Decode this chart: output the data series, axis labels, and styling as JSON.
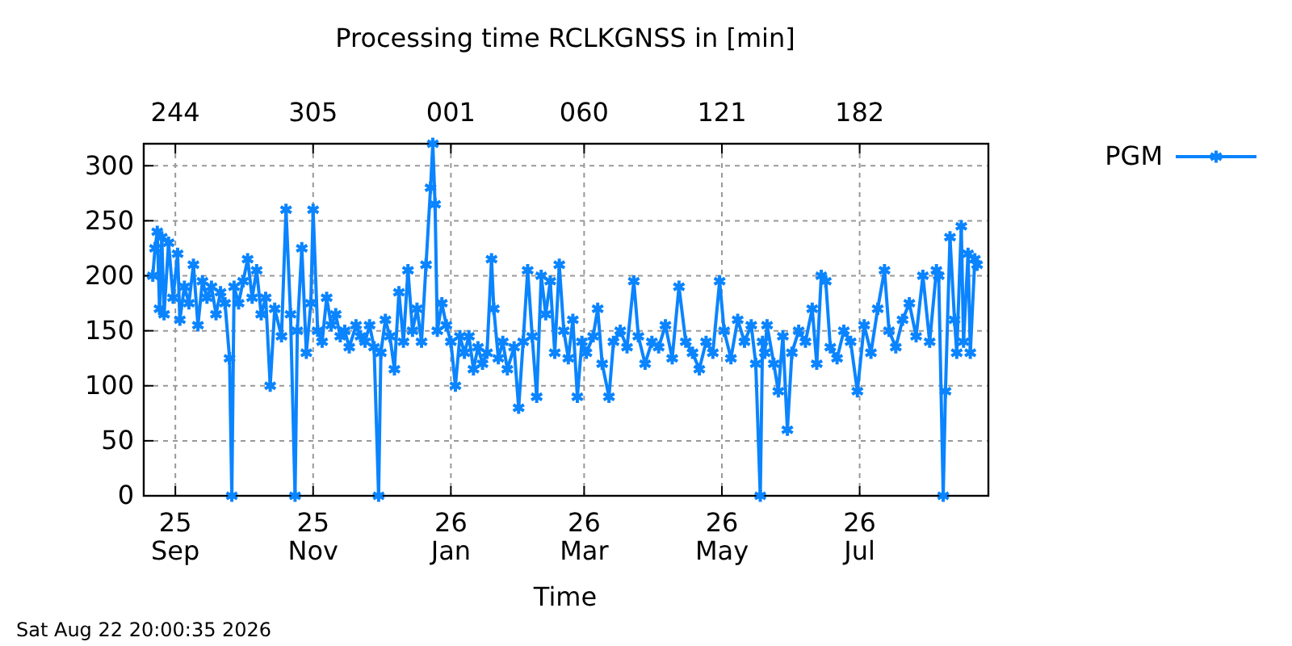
{
  "chart_data": {
    "type": "line",
    "title": "Processing time RCLKGNSS in [min]",
    "xlabel": "Time",
    "annotations": [
      "Sat Aug 22 20:00:35 2026"
    ],
    "xlim": [
      "2025-08-18",
      "2026-08-27"
    ],
    "xticks": [
      {
        "value": "2025-09-01",
        "label": "25\nSep"
      },
      {
        "value": "2025-11-01",
        "label": "25\nNov"
      },
      {
        "value": "2026-01-01",
        "label": "26\nJan"
      },
      {
        "value": "2026-03-01",
        "label": "26\nMar"
      },
      {
        "value": "2026-05-01",
        "label": "26\nMay"
      },
      {
        "value": "2026-07-01",
        "label": "26\nJul"
      }
    ],
    "x2lim": [
      "2025-08-18",
      "2026-08-27"
    ],
    "x2ticks": [
      {
        "value": "2025-09-01",
        "label": "244"
      },
      {
        "value": "2025-11-01",
        "label": "305"
      },
      {
        "value": "2026-01-01",
        "label": "001"
      },
      {
        "value": "2026-03-01",
        "label": "060"
      },
      {
        "value": "2026-05-01",
        "label": "121"
      },
      {
        "value": "2026-07-01",
        "label": "182"
      }
    ],
    "ylim": [
      0,
      320
    ],
    "yticks": [
      0,
      50,
      100,
      150,
      200,
      250,
      300
    ],
    "grid": true,
    "legend": "top right",
    "marker": "cross",
    "line_style": "solid",
    "x": [
      "2025-08-22",
      "2025-08-23",
      "2025-08-24",
      "2025-08-25",
      "2025-08-26",
      "2025-08-27",
      "2025-08-29",
      "2025-08-31",
      "2025-09-02",
      "2025-09-03",
      "2025-09-05",
      "2025-09-07",
      "2025-09-09",
      "2025-09-11",
      "2025-09-13",
      "2025-09-15",
      "2025-09-17",
      "2025-09-19",
      "2025-09-21",
      "2025-09-23",
      "2025-09-25",
      "2025-09-26",
      "2025-09-27",
      "2025-09-29",
      "2025-10-01",
      "2025-10-03",
      "2025-10-05",
      "2025-10-07",
      "2025-10-09",
      "2025-10-11",
      "2025-10-13",
      "2025-10-15",
      "2025-10-18",
      "2025-10-20",
      "2025-10-22",
      "2025-10-24",
      "2025-10-25",
      "2025-10-27",
      "2025-10-29",
      "2025-10-31",
      "2025-11-01",
      "2025-11-03",
      "2025-11-05",
      "2025-11-07",
      "2025-11-09",
      "2025-11-11",
      "2025-11-13",
      "2025-11-15",
      "2025-11-17",
      "2025-11-20",
      "2025-11-22",
      "2025-11-24",
      "2025-11-26",
      "2025-11-28",
      "2025-11-30",
      "2025-12-01",
      "2025-12-03",
      "2025-12-05",
      "2025-12-07",
      "2025-12-09",
      "2025-12-11",
      "2025-12-13",
      "2025-12-15",
      "2025-12-17",
      "2025-12-19",
      "2025-12-21",
      "2025-12-23",
      "2025-12-24",
      "2025-12-25",
      "2025-12-26",
      "2025-12-28",
      "2025-12-30",
      "2026-01-01",
      "2026-01-03",
      "2026-01-05",
      "2026-01-07",
      "2026-01-09",
      "2026-01-11",
      "2026-01-13",
      "2026-01-15",
      "2026-01-17",
      "2026-01-19",
      "2026-01-20",
      "2026-01-22",
      "2026-01-24",
      "2026-01-26",
      "2026-01-29",
      "2026-01-31",
      "2026-02-02",
      "2026-02-04",
      "2026-02-06",
      "2026-02-08",
      "2026-02-10",
      "2026-02-12",
      "2026-02-14",
      "2026-02-16",
      "2026-02-18",
      "2026-02-20",
      "2026-02-22",
      "2026-02-24",
      "2026-02-26",
      "2026-02-28",
      "2026-03-02",
      "2026-03-05",
      "2026-03-07",
      "2026-03-09",
      "2026-03-12",
      "2026-03-14",
      "2026-03-17",
      "2026-03-20",
      "2026-03-23",
      "2026-03-25",
      "2026-03-28",
      "2026-03-31",
      "2026-04-03",
      "2026-04-06",
      "2026-04-09",
      "2026-04-12",
      "2026-04-15",
      "2026-04-18",
      "2026-04-21",
      "2026-04-24",
      "2026-04-27",
      "2026-04-30",
      "2026-05-02",
      "2026-05-05",
      "2026-05-08",
      "2026-05-11",
      "2026-05-14",
      "2026-05-16",
      "2026-05-18",
      "2026-05-19",
      "2026-05-20",
      "2026-05-21",
      "2026-05-24",
      "2026-05-26",
      "2026-05-28",
      "2026-05-30",
      "2026-06-01",
      "2026-06-04",
      "2026-06-07",
      "2026-06-10",
      "2026-06-12",
      "2026-06-14",
      "2026-06-16",
      "2026-06-18",
      "2026-06-21",
      "2026-06-24",
      "2026-06-27",
      "2026-06-30",
      "2026-07-03",
      "2026-07-06",
      "2026-07-09",
      "2026-07-12",
      "2026-07-14",
      "2026-07-17",
      "2026-07-20",
      "2026-07-23",
      "2026-07-26",
      "2026-07-29",
      "2026-08-01",
      "2026-08-04",
      "2026-08-05",
      "2026-08-07",
      "2026-08-08",
      "2026-08-10",
      "2026-08-12",
      "2026-08-13",
      "2026-08-15",
      "2026-08-16",
      "2026-08-18",
      "2026-08-19",
      "2026-08-21",
      "2026-08-22"
    ],
    "series": [
      {
        "name": "PGM",
        "color": "#0a84ff",
        "values": [
          200,
          225,
          240,
          170,
          235,
          165,
          230,
          180,
          220,
          160,
          190,
          175,
          210,
          155,
          195,
          180,
          190,
          165,
          185,
          175,
          125,
          0,
          190,
          175,
          195,
          215,
          180,
          205,
          165,
          180,
          100,
          170,
          145,
          260,
          165,
          0,
          150,
          225,
          130,
          175,
          260,
          150,
          140,
          180,
          155,
          165,
          145,
          150,
          135,
          155,
          145,
          140,
          155,
          135,
          0,
          130,
          160,
          145,
          115,
          185,
          140,
          205,
          150,
          170,
          140,
          210,
          280,
          320,
          265,
          150,
          175,
          155,
          140,
          100,
          145,
          130,
          145,
          115,
          135,
          120,
          130,
          215,
          170,
          125,
          140,
          115,
          135,
          80,
          140,
          205,
          145,
          90,
          200,
          165,
          195,
          130,
          210,
          150,
          125,
          160,
          90,
          140,
          130,
          145,
          170,
          120,
          90,
          140,
          150,
          135,
          195,
          145,
          120,
          140,
          135,
          155,
          125,
          190,
          140,
          130,
          115,
          140,
          130,
          195,
          150,
          125,
          160,
          140,
          155,
          120,
          0,
          140,
          130,
          155,
          120,
          95,
          145,
          60,
          130,
          150,
          140,
          170,
          120,
          200,
          195,
          135,
          125,
          150,
          140,
          95,
          155,
          130,
          170,
          205,
          150,
          135,
          160,
          175,
          145,
          200,
          140,
          205,
          200,
          0,
          95,
          235,
          160,
          130,
          245,
          140,
          220,
          130,
          215,
          210
        ]
      }
    ]
  }
}
